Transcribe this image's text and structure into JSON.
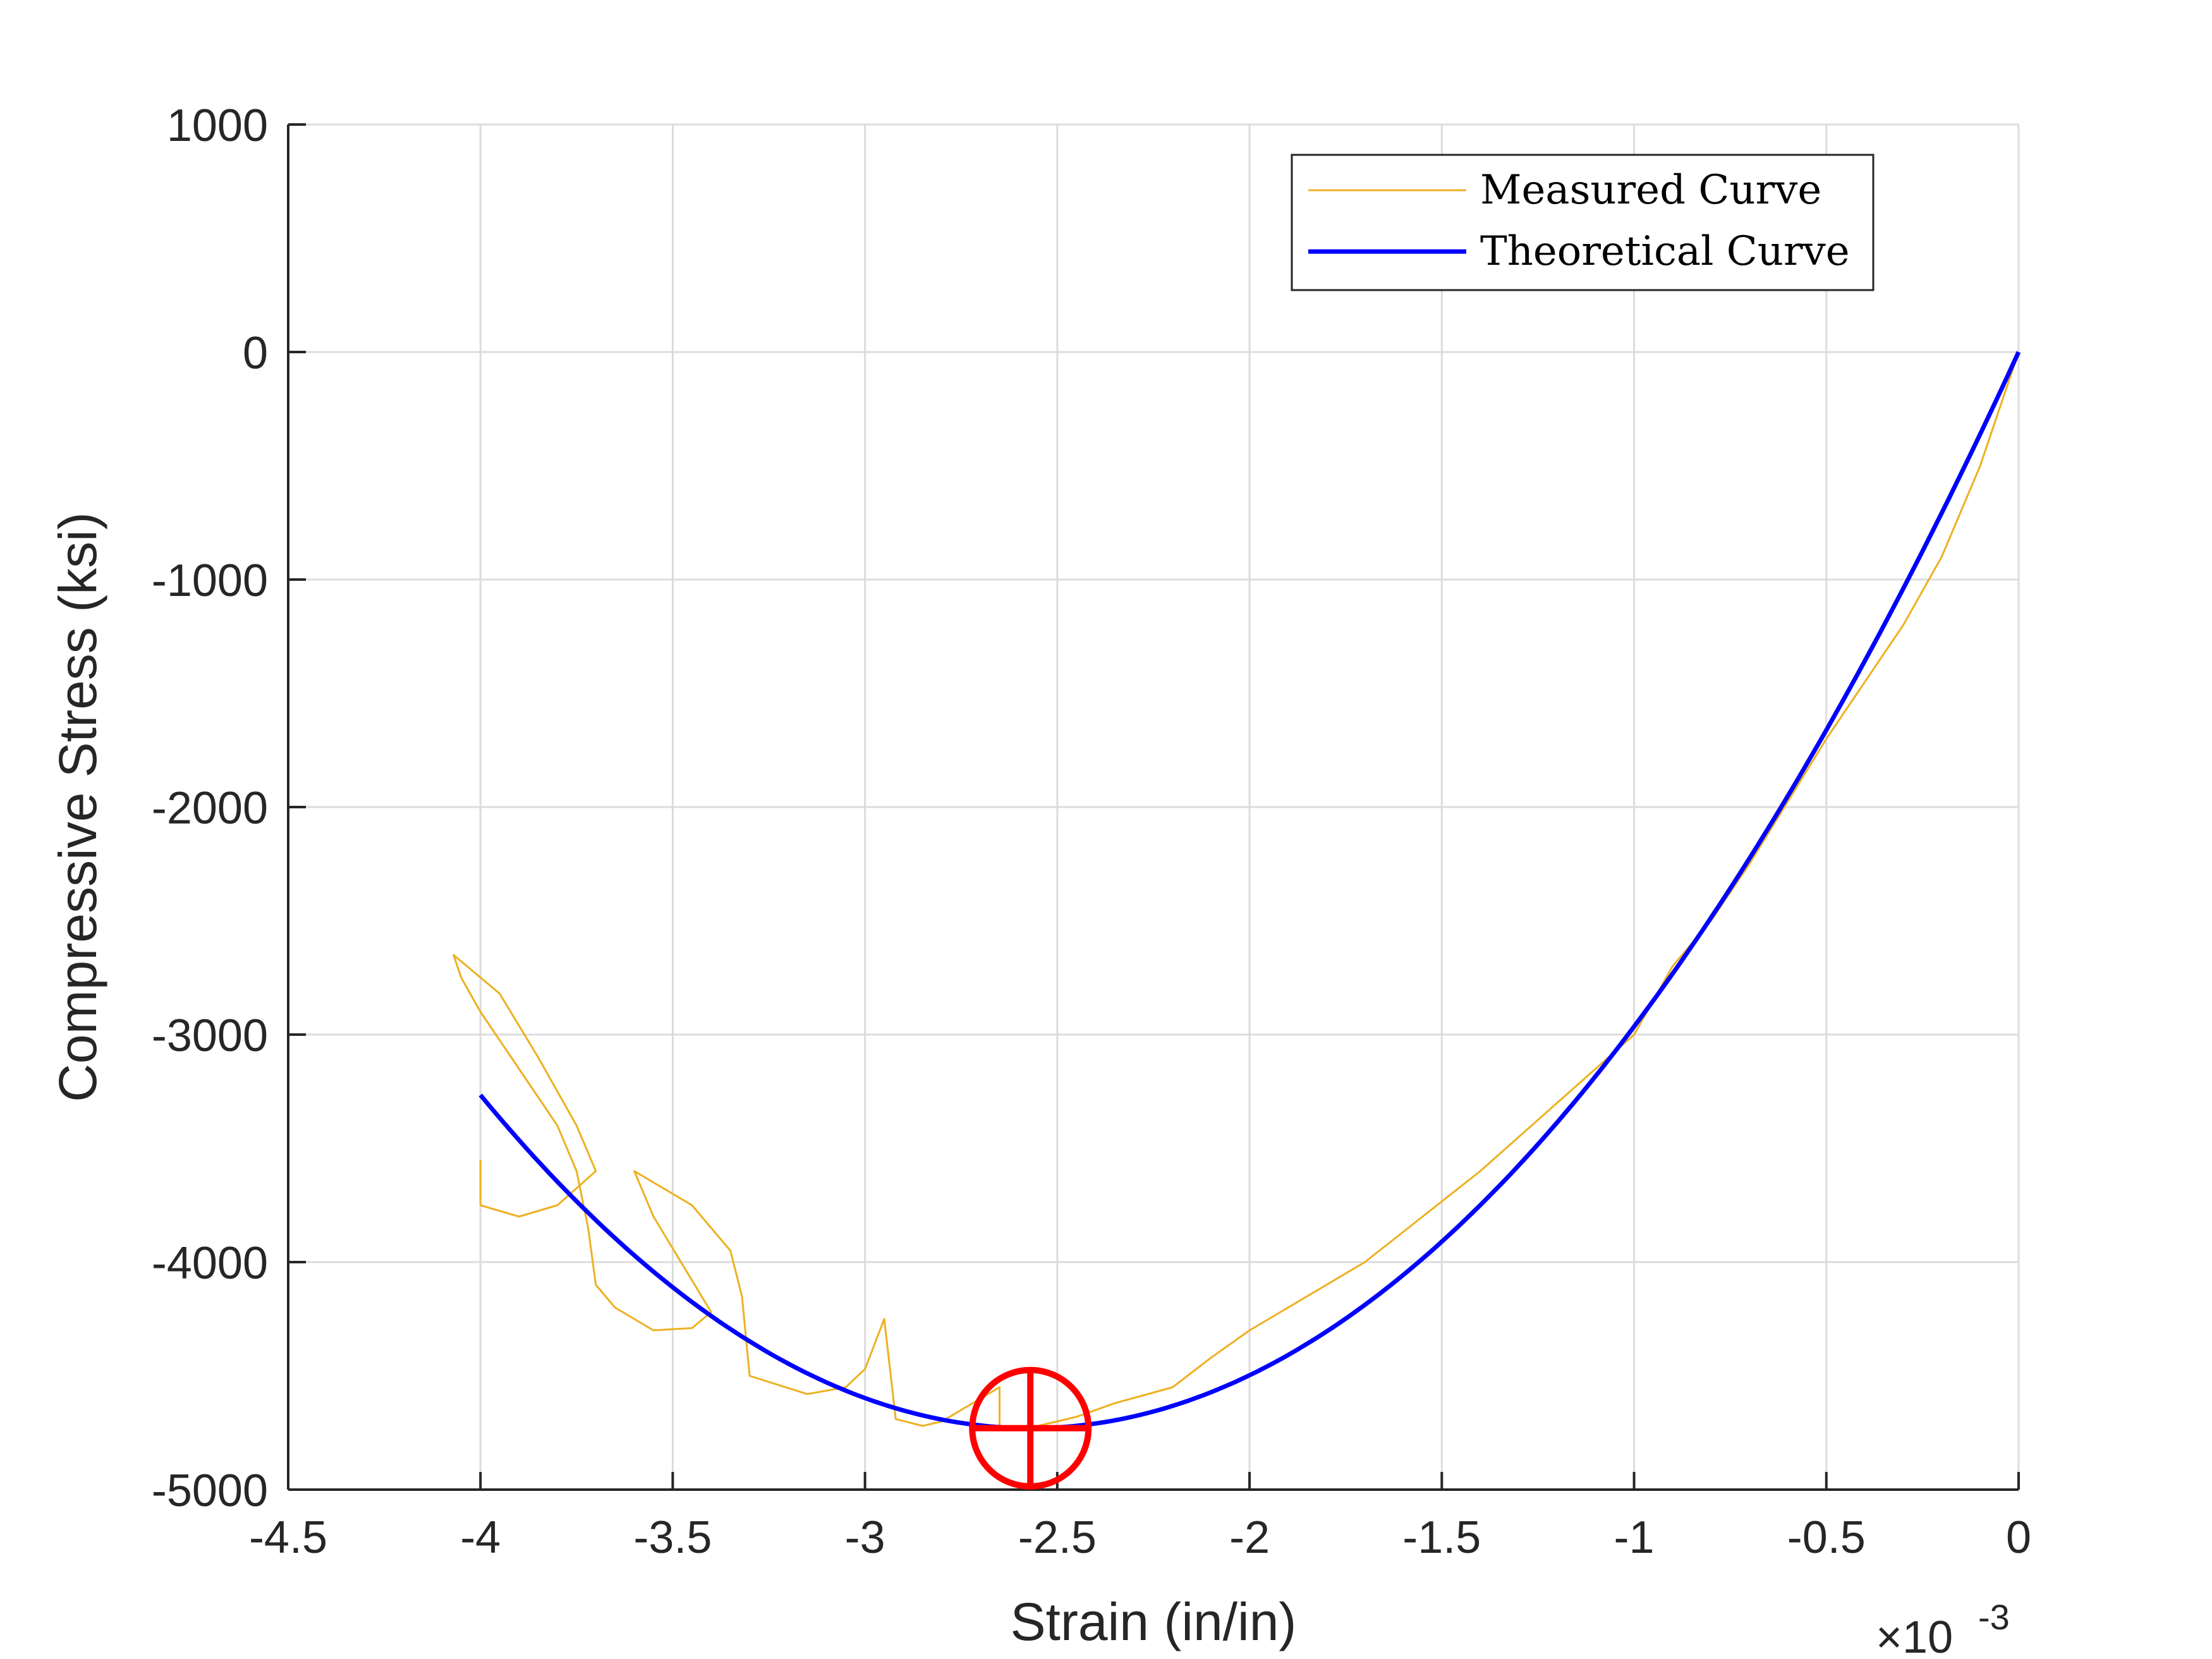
{
  "chart_data": {
    "type": "line",
    "xlabel": "Strain (in/in)",
    "ylabel": "Compressive Stress (ksi)",
    "x_exponent": {
      "base": "×10",
      "power": "-3"
    },
    "xlim": [
      -4.5,
      0
    ],
    "ylim": [
      -5000,
      1000
    ],
    "xticks": [
      -4.5,
      -4,
      -3.5,
      -3,
      -2.5,
      -2,
      -1.5,
      -1,
      -0.5,
      0
    ],
    "xtick_labels": [
      "-4.5",
      "-4",
      "-3.5",
      "-3",
      "-2.5",
      "-2",
      "-1.5",
      "-1",
      "-0.5",
      "0"
    ],
    "yticks": [
      -5000,
      -4000,
      -3000,
      -2000,
      -1000,
      0,
      1000
    ],
    "ytick_labels": [
      "-5000",
      "-4000",
      "-3000",
      "-2000",
      "-1000",
      "0",
      "1000"
    ],
    "grid": true,
    "legend": {
      "position": "top-right",
      "entries": [
        "Measured Curve",
        "Theoretical Curve"
      ]
    },
    "series": [
      {
        "name": "Measured Curve",
        "color": "#EDB120",
        "points": [
          [
            0,
            0
          ],
          [
            -0.05,
            -250
          ],
          [
            -0.1,
            -500
          ],
          [
            -0.2,
            -900
          ],
          [
            -0.3,
            -1200
          ],
          [
            -0.5,
            -1700
          ],
          [
            -0.7,
            -2250
          ],
          [
            -0.8,
            -2500
          ],
          [
            -0.9,
            -2700
          ],
          [
            -1.0,
            -3000
          ],
          [
            -1.2,
            -3300
          ],
          [
            -1.4,
            -3600
          ],
          [
            -1.55,
            -3800
          ],
          [
            -1.7,
            -4000
          ],
          [
            -1.85,
            -4150
          ],
          [
            -2.0,
            -4300
          ],
          [
            -2.1,
            -4420
          ],
          [
            -2.2,
            -4550
          ],
          [
            -2.35,
            -4620
          ],
          [
            -2.45,
            -4680
          ],
          [
            -2.5,
            -4700
          ],
          [
            -2.6,
            -4740
          ],
          [
            -2.65,
            -4730
          ],
          [
            -2.65,
            -4550
          ],
          [
            -2.7,
            -4600
          ],
          [
            -2.8,
            -4700
          ],
          [
            -2.85,
            -4720
          ],
          [
            -2.92,
            -4690
          ],
          [
            -2.95,
            -4250
          ],
          [
            -3.0,
            -4470
          ],
          [
            -3.05,
            -4550
          ],
          [
            -3.15,
            -4580
          ],
          [
            -3.3,
            -4500
          ],
          [
            -3.32,
            -4150
          ],
          [
            -3.35,
            -3950
          ],
          [
            -3.45,
            -3750
          ],
          [
            -3.6,
            -3600
          ],
          [
            -3.55,
            -3800
          ],
          [
            -3.4,
            -4220
          ],
          [
            -3.45,
            -4290
          ],
          [
            -3.55,
            -4300
          ],
          [
            -3.65,
            -4200
          ],
          [
            -3.7,
            -4100
          ],
          [
            -3.72,
            -3850
          ],
          [
            -3.75,
            -3600
          ],
          [
            -3.8,
            -3400
          ],
          [
            -3.9,
            -3150
          ],
          [
            -4.0,
            -2900
          ],
          [
            -4.05,
            -2750
          ],
          [
            -4.07,
            -2650
          ],
          [
            -3.95,
            -2820
          ],
          [
            -3.85,
            -3100
          ],
          [
            -3.75,
            -3400
          ],
          [
            -3.7,
            -3600
          ],
          [
            -3.8,
            -3750
          ],
          [
            -3.9,
            -3800
          ],
          [
            -4.0,
            -3750
          ],
          [
            -4.0,
            -3550
          ]
        ]
      },
      {
        "name": "Theoretical Curve",
        "color": "#0000FF",
        "model": "sigma = fc * (2*(e/e0) - (e/e0)^2)",
        "fc": -4730,
        "e0": -2.57,
        "x_range": [
          -4.0,
          0
        ]
      }
    ],
    "annotations": [
      {
        "type": "circle-cross-marker",
        "x": -2.57,
        "y": -4730,
        "color": "#FF0000"
      }
    ]
  }
}
